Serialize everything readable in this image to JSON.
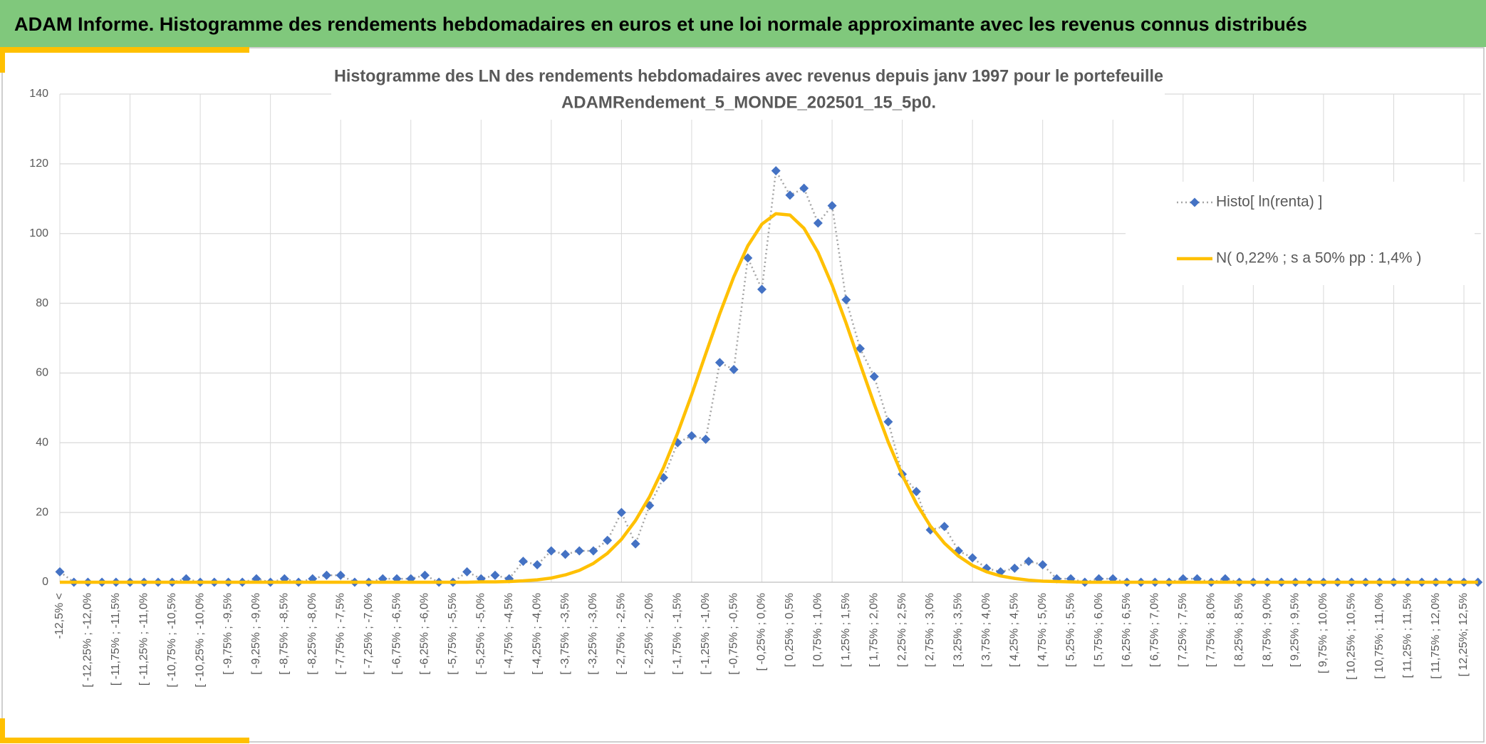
{
  "header": {
    "title": "ADAM Informe. Histogramme des rendements hebdomadaires en euros et une loi normale approximante avec les revenus connus distribués"
  },
  "chart_data": {
    "type": "line",
    "title": [
      "Histogramme des LN des rendements hebdomadaires avec revenus depuis janv 1997 pour le portefeuille",
      "ADAMRendement_5_MONDE_202501_15_5p0."
    ],
    "categories": [
      "-12,5% <",
      null,
      "[ -12,25% ; -12,0%",
      null,
      "[ -11,75% ; -11,5%",
      null,
      "[ -11,25% ; -11,0%",
      null,
      "[ -10,75% ; -10,5%",
      null,
      "[ -10,25% ; -10,0%",
      null,
      "[ -9,75% ; -9,5%",
      null,
      "[ -9,25% ; -9,0%",
      null,
      "[ -8,75% ; -8,5%",
      null,
      "[ -8,25% ; -8,0%",
      null,
      "[ -7,75% ; -7,5%",
      null,
      "[ -7,25% ; -7,0%",
      null,
      "[ -6,75% ; -6,5%",
      null,
      "[ -6,25% ; -6,0%",
      null,
      "[ -5,75% ; -5,5%",
      null,
      "[ -5,25% ; -5,0%",
      null,
      "[ -4,75% ; -4,5%",
      null,
      "[ -4,25% ; -4,0%",
      null,
      "[ -3,75% ; -3,5%",
      null,
      "[ -3,25% ; -3,0%",
      null,
      "[ -2,75% ; -2,5%",
      null,
      "[ -2,25% ; -2,0%",
      null,
      "[ -1,75% ; -1,5%",
      null,
      "[ -1,25% ; -1,0%",
      null,
      "[ -0,75% ; -0,5%",
      null,
      "[ -0,25% ; 0,0%",
      null,
      "[ 0,25% ; 0,5%",
      null,
      "[ 0,75% ; 1,0%",
      null,
      "[ 1,25% ; 1,5%",
      null,
      "[ 1,75% ; 2,0%",
      null,
      "[ 2,25% ; 2,5%",
      null,
      "[ 2,75% ; 3,0%",
      null,
      "[ 3,25% ; 3,5%",
      null,
      "[ 3,75% ; 4,0%",
      null,
      "[ 4,25% ; 4,5%",
      null,
      "[ 4,75% ; 5,0%",
      null,
      "[ 5,25% ; 5,5%",
      null,
      "[ 5,75% ; 6,0%",
      null,
      "[ 6,25% ; 6,5%",
      null,
      "[ 6,75% ; 7,0%",
      null,
      "[ 7,25% ; 7,5%",
      null,
      "[ 7,75% ; 8,0%",
      null,
      "[ 8,25% ; 8,5%",
      null,
      "[ 8,75% ; 9,0%",
      null,
      "[ 9,25% ; 9,5%",
      null,
      "[ 9,75% ; 10,0%",
      null,
      "[ 10,25% ; 10,5%",
      null,
      "[ 10,75% ; 11,0%",
      null,
      "[ 11,25% ; 11,5%",
      null,
      "[ 11,75% ; 12,0%",
      null,
      "[ 12,25%; 12,5%",
      null
    ],
    "series": [
      {
        "name": "Histo[ ln(renta) ]",
        "color": "#4472c4",
        "marker": "diamond",
        "line_color": "#a5a5a5",
        "line_style": "dotted",
        "values": [
          3,
          0,
          0,
          0,
          0,
          0,
          0,
          0,
          0,
          1,
          0,
          0,
          0,
          0,
          1,
          0,
          1,
          0,
          1,
          2,
          2,
          0,
          0,
          1,
          1,
          1,
          2,
          0,
          0,
          3,
          1,
          2,
          1,
          6,
          5,
          9,
          8,
          9,
          9,
          12,
          20,
          11,
          22,
          30,
          40,
          42,
          41,
          63,
          61,
          93,
          84,
          118,
          111,
          113,
          103,
          108,
          81,
          67,
          59,
          46,
          31,
          26,
          15,
          16,
          9,
          7,
          4,
          3,
          4,
          6,
          5,
          1,
          1,
          0,
          1,
          1,
          0,
          0,
          0,
          0,
          1,
          1,
          0,
          1,
          0,
          0,
          0,
          0,
          0,
          0,
          0,
          0,
          0,
          0,
          0,
          0,
          0,
          0,
          0,
          0,
          0,
          0
        ]
      },
      {
        "name": "N( 0,22% ; s a 50% pp : 1,4% )",
        "color": "#ffc000",
        "line_style": "solid",
        "values": [
          0,
          0,
          0,
          0,
          0,
          0,
          0,
          0,
          0,
          0,
          0,
          0,
          0,
          0,
          0,
          0,
          0,
          0,
          0,
          0,
          0,
          0,
          0,
          0,
          0,
          0,
          0,
          0,
          0,
          0,
          0.1,
          0.1,
          0.2,
          0.4,
          0.7,
          1.2,
          2.1,
          3.4,
          5.4,
          8.3,
          12.3,
          17.7,
          24.5,
          32.9,
          42.8,
          53.8,
          65.5,
          77.0,
          87.6,
          96.5,
          102.7,
          105.7,
          105.3,
          101.5,
          94.6,
          85.2,
          74.3,
          62.6,
          51.1,
          40.2,
          30.7,
          22.6,
          16.1,
          11.2,
          7.5,
          4.8,
          3.0,
          1.8,
          1.1,
          0.6,
          0.3,
          0.2,
          0.1,
          0,
          0,
          0,
          0,
          0,
          0,
          0,
          0,
          0,
          0,
          0,
          0,
          0,
          0,
          0,
          0,
          0,
          0,
          0,
          0,
          0,
          0,
          0,
          0,
          0,
          0,
          0,
          0,
          0
        ]
      }
    ],
    "ylim": [
      0,
      140
    ],
    "yticks": [
      0,
      20,
      40,
      60,
      80,
      100,
      120,
      140
    ],
    "grid": true,
    "legend": "upper right"
  }
}
